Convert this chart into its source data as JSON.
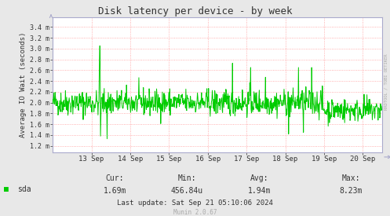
{
  "title": "Disk latency per device - by week",
  "ylabel": "Average IO Wait (seconds)",
  "bg_color": "#E8E8E8",
  "plot_bg_color": "#FFFFFF",
  "grid_color": "#FF9999",
  "line_color": "#00CC00",
  "axis_color": "#AAAACC",
  "text_color": "#333333",
  "light_text_color": "#AAAAAA",
  "ytick_labels": [
    "1.2 m",
    "1.4 m",
    "1.6 m",
    "1.8 m",
    "2.0 m",
    "2.2 m",
    "2.4 m",
    "2.6 m",
    "2.8 m",
    "3.0 m",
    "3.2 m",
    "3.4 m"
  ],
  "ytick_values": [
    0.0012,
    0.0014,
    0.0016,
    0.0018,
    0.002,
    0.0022,
    0.0024,
    0.0026,
    0.0028,
    0.003,
    0.0032,
    0.0034
  ],
  "ylim_low": 0.00108,
  "ylim_high": 0.00358,
  "xtick_labels": [
    "13 Sep",
    "14 Sep",
    "15 Sep",
    "16 Sep",
    "17 Sep",
    "18 Sep",
    "19 Sep",
    "20 Sep"
  ],
  "legend_label": "sda",
  "legend_color": "#00CC00",
  "cur_label": "Cur:",
  "cur_val": "1.69m",
  "min_label": "Min:",
  "min_val": "456.84u",
  "avg_label": "Avg:",
  "avg_val": "1.94m",
  "max_label": "Max:",
  "max_val": "8.23m",
  "last_update": "Last update: Sat Sep 21 05:10:06 2024",
  "munin_label": "Munin 2.0.67",
  "rrdtool_label": "RRDTOOL / TOBI OETIKER",
  "seed": 42,
  "n_points": 800
}
